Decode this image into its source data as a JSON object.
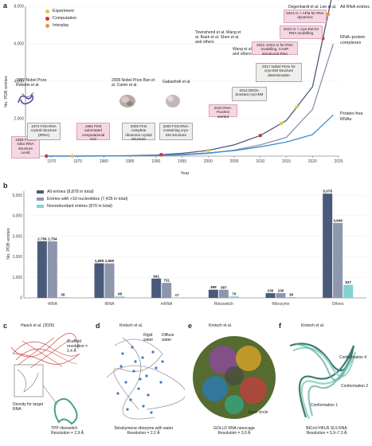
{
  "panel_a": {
    "letter": "a",
    "ylabel": "No. PDB entries",
    "xlabel": "Year",
    "legend": [
      {
        "label": "Experiment",
        "color": "#e8c53a"
      },
      {
        "label": "Computation",
        "color": "#d2323a"
      },
      {
        "label": "Interplay",
        "color": "#f0932b"
      }
    ],
    "series_labels": {
      "all": "All RNA entries",
      "complexes": "RNA–protein complexes",
      "free": "Protein-free RNAs"
    },
    "refs": {
      "r1982": "1982 Nobel Prize Roberts et al.",
      "r2008": "2008 Nobel Prize Ban et al. Carter et al.",
      "r_gabashvili": "Gabashvili et al.",
      "r_wang": "Wang et al. Li et al. and others",
      "r_townshend": "Townshend et al. Wang et al. Baek et al. Shen et al. and others",
      "r_degenhardt": "Degenhardt et al. Lee et al."
    },
    "events": {
      "e1969": "1969 First in silico RNA structure Levitt",
      "e1974": "1974 First RNA crystal structure (tRNA)",
      "e1991": "1991 First automated computational tool",
      "e2000a": "2000 First complete ribosome crystal structure",
      "e2000b": "2000 First RNA-containing cryo-EM structure",
      "e2010": "2010 RNA-Puzzles started",
      "e2014": "2014 DEDs-boosted cryo-EM",
      "e2017": "2017 Nobel Prize for cryo-EM structure determination",
      "e2021": "2021–2022 AI for RNA modelling, CASP introduced RNA",
      "e2023": "2023 AI + cryo-EM for RNA modelling",
      "e2024": "2024 AI + AFM for RNA dynamics"
    },
    "e2017_nobel": "Nobel Prize",
    "chart_data": {
      "type": "line",
      "x": [
        1969,
        1975,
        1980,
        1985,
        1990,
        1995,
        2000,
        2005,
        2010,
        2015,
        2020,
        2024
      ],
      "series": [
        {
          "name": "All RNA entries",
          "values": [
            0,
            2,
            10,
            25,
            60,
            150,
            300,
            600,
            1100,
            1900,
            3700,
            8878
          ]
        },
        {
          "name": "RNA–protein complexes",
          "values": [
            0,
            1,
            3,
            8,
            20,
            60,
            140,
            320,
            600,
            1000,
            2500,
            6000
          ]
        },
        {
          "name": "Protein-free RNAs",
          "values": [
            0,
            1,
            7,
            17,
            40,
            90,
            170,
            290,
            500,
            750,
            1150,
            2200
          ]
        }
      ],
      "xlim": [
        1965,
        2025
      ],
      "ylim": [
        0,
        8000
      ],
      "yticks": [
        "0",
        "2,000",
        "4,000",
        "6,000",
        "8,000"
      ],
      "xticks": [
        "1970",
        "1975",
        "1980",
        "1985",
        "1990",
        "1995",
        "2000",
        "2005",
        "2010",
        "2015",
        "2020",
        "2025"
      ],
      "event_points": [
        {
          "year": 1969,
          "kind": "Computation"
        },
        {
          "year": 1974,
          "kind": "Experiment"
        },
        {
          "year": 1991,
          "kind": "Computation"
        },
        {
          "year": 2000,
          "kind": "Experiment"
        },
        {
          "year": 2010,
          "kind": "Computation"
        },
        {
          "year": 2014,
          "kind": "Experiment"
        },
        {
          "year": 2017,
          "kind": "Experiment"
        },
        {
          "year": 2022,
          "kind": "Computation"
        },
        {
          "year": 2023,
          "kind": "Interplay"
        },
        {
          "year": 2024,
          "kind": "Interplay"
        }
      ],
      "colors": {
        "all": "#4a5a78",
        "complexes": "#8a93a8",
        "free": "#3b8fd6"
      }
    }
  },
  "panel_b": {
    "letter": "b",
    "ylabel": "No. PDB entries",
    "legend": [
      {
        "label": "All entries (8,878 in total)",
        "color": "#4a5a7a"
      },
      {
        "label": "Entries with >10 nucleotides (7,435 in total)",
        "color": "#8c96ad"
      },
      {
        "label": "Nonredundant entries (870 in total)",
        "color": "#7fd3d3"
      }
    ],
    "chart_data": {
      "type": "bar",
      "categories": [
        "rRNA",
        "tRNA",
        "mRNA",
        "Riboswitch",
        "Ribozyme",
        "Others"
      ],
      "series": [
        {
          "name": "All entries (8,878 in total)",
          "values": [
            2756,
            1685,
            941,
            398,
            230,
            5078
          ]
        },
        {
          "name": "Entries with >10 nucleotides (7,435 in total)",
          "values": [
            2754,
            1680,
            731,
            397,
            230,
            3646
          ]
        },
        {
          "name": "Nonredundant entries (870 in total)",
          "values": [
            39,
            68,
            17,
            70,
            39,
            637
          ]
        }
      ],
      "value_labels": [
        [
          "2,756",
          "1,685",
          "941",
          "398",
          "230",
          "5,078"
        ],
        [
          "2,754",
          "1,680",
          "731",
          "397",
          "230",
          "3,646"
        ],
        [
          "39",
          "68",
          "17",
          "70",
          "39",
          "637"
        ]
      ],
      "ylim": [
        0,
        5200
      ],
      "yticks": [
        "0",
        "1,000",
        "2,000",
        "3,000",
        "4,000",
        "5,000"
      ],
      "colors": [
        "#4a5a7a",
        "#8c96ad",
        "#7fd3d3"
      ]
    }
  },
  "panel_c": {
    "letter": "c",
    "ref": "Haack et al. (2026)",
    "scaffold": "Scaffold resolution = 2.4 Å",
    "density": "Density for target RNA",
    "caption": "TPP riboswitch Resolution = 2.9 Å"
  },
  "panel_d": {
    "letter": "d",
    "ref": "Kretsch et al.",
    "rigid": "Rigid water",
    "diffuse": "Diffuse water",
    "caption_italic": "Tetrahymena",
    "caption": " ribozyme with water",
    "resolution": "Resolution = 2.2 Å"
  },
  "panel_e": {
    "letter": "e",
    "ref": "Kretsch et al.",
    "inner": "Inner circle",
    "caption": "GOLLD RNA nanocage Resolution = 3.0 Å"
  },
  "panel_f": {
    "letter": "f",
    "ref": "Kretsch et al.",
    "conf4": "Conformation 4",
    "conf2": "Conformation 2",
    "conf1": "Conformation 1",
    "caption": "BtCoV-HKU5 SL5 RNA Resolution = 5.9–7.3 Å"
  }
}
